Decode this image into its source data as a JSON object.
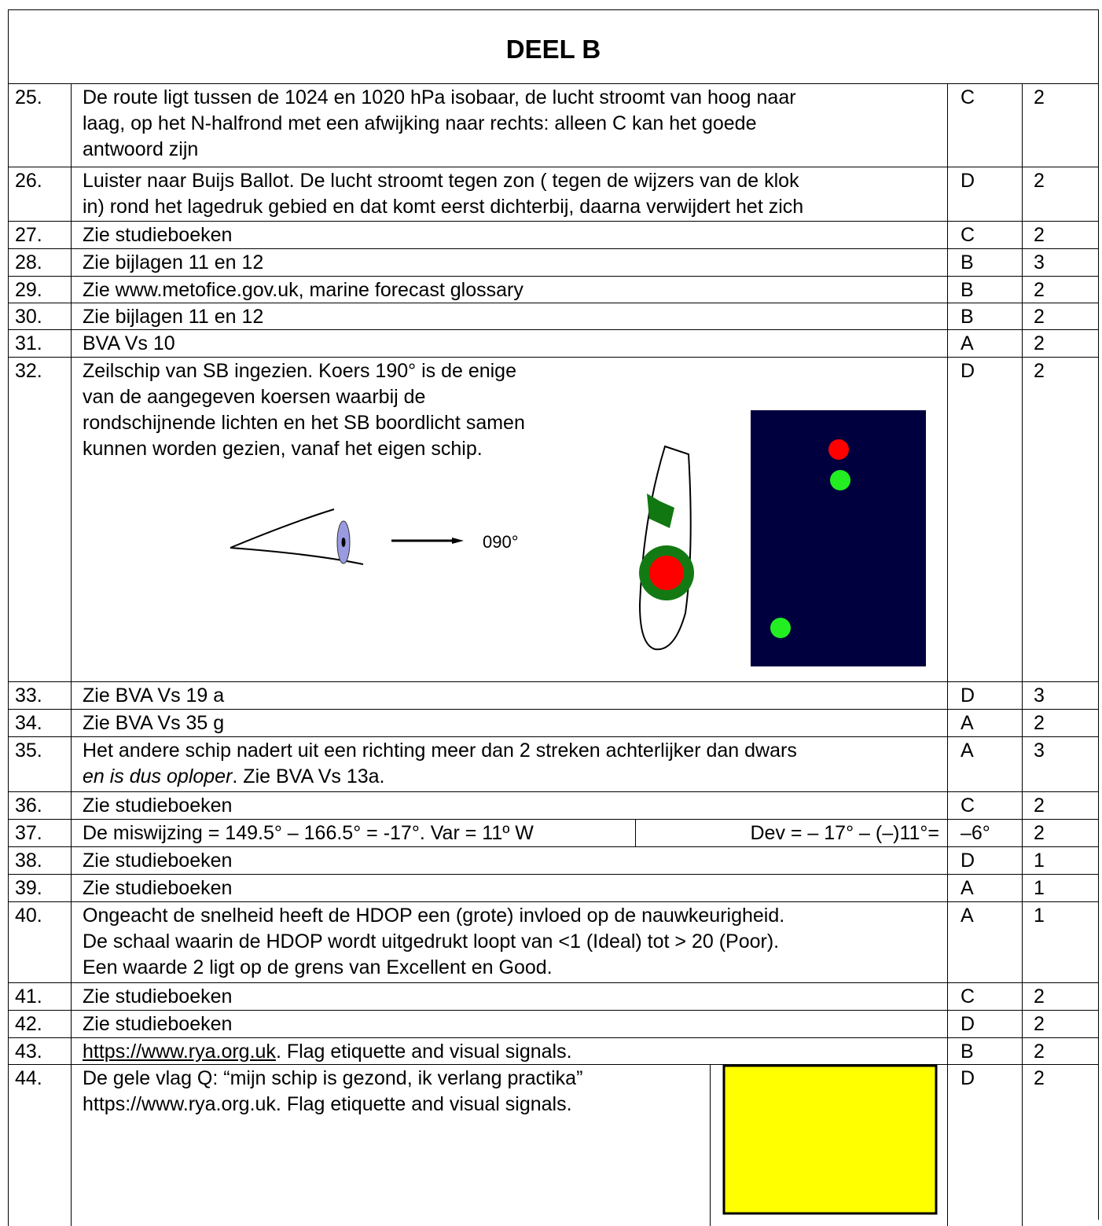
{
  "header": {
    "title": "DEEL B"
  },
  "table": {
    "rows": [
      {
        "number": "25.",
        "lines": [
          "De route ligt tussen de 1024 en 1020 hPa isobaar, de lucht stroomt van hoog naar",
          "laag, op het N-halfrond met een afwijking naar rechts: alleen C kan het goede",
          "antwoord zijn"
        ],
        "answer": "C",
        "points": "2"
      },
      {
        "number": "26.",
        "lines": [
          "Luister naar Buijs Ballot. De lucht stroomt tegen zon ( tegen de wijzers van de klok",
          "in) rond het lagedruk gebied en dat komt eerst dichterbij, daarna verwijdert het zich"
        ],
        "answer": "D",
        "points": "2"
      },
      {
        "number": "27.",
        "lines": [
          "Zie studieboeken"
        ],
        "answer": "C",
        "points": "2"
      },
      {
        "number": "28.",
        "lines": [
          "Zie bijlagen 11 en 12"
        ],
        "answer": "B",
        "points": "3"
      },
      {
        "number": "29.",
        "lines": [
          "Zie www.metofice.gov.uk, marine forecast glossary"
        ],
        "answer": "B",
        "points": "2"
      },
      {
        "number": "30.",
        "lines": [
          "Zie bijlagen 11 en 12"
        ],
        "answer": "B",
        "points": "2"
      },
      {
        "number": "31.",
        "lines": [
          "BVA Vs 10"
        ],
        "answer": "A",
        "points": "2"
      },
      {
        "number": "32.",
        "lines": [
          "Zeilschip van SB ingezien. Koers 190° is de enige",
          "van de aangegeven koersen waarbij de",
          "rondschijnende lichten en het SB boordlicht samen",
          "kunnen worden gezien, vanaf het eigen schip."
        ],
        "figure_label": "090°",
        "answer": "D",
        "points": "2"
      },
      {
        "number": "33.",
        "lines": [
          "Zie BVA Vs 19 a"
        ],
        "answer": "D",
        "points": "3"
      },
      {
        "number": "34.",
        "lines": [
          "Zie BVA Vs 35 g"
        ],
        "answer": "A",
        "points": "2"
      },
      {
        "number": "35.",
        "lines": [
          "Het andere schip nadert uit een richting meer dan 2 streken achterlijker dan dwars"
        ],
        "italic": "en is dus oploper",
        "after": ". Zie BVA Vs 13a.",
        "answer": "A",
        "points": "3"
      },
      {
        "number": "36.",
        "lines": [
          "Zie studieboeken"
        ],
        "answer": "C",
        "points": "2"
      },
      {
        "number": "37.",
        "lines": [
          "De miswijzing = 149.5° – 166.5° = -17°. Var = 11º W"
        ],
        "extra": "Dev = – 17° – (–)11°=",
        "answer": "–6°",
        "points": "2"
      },
      {
        "number": "38.",
        "lines": [
          "Zie studieboeken"
        ],
        "answer": "D",
        "points": "1"
      },
      {
        "number": "39.",
        "lines": [
          "Zie studieboeken"
        ],
        "answer": "A",
        "points": "1"
      },
      {
        "number": "40.",
        "lines": [
          "Ongeacht de snelheid heeft de HDOP een (grote) invloed op de nauwkeurigheid.",
          "De schaal waarin de HDOP wordt uitgedrukt loopt van <1 (Ideal) tot > 20 (Poor).",
          "Een waarde 2 ligt op de grens van Excellent en Good."
        ],
        "answer": "A",
        "points": "1"
      },
      {
        "number": "41.",
        "lines": [
          "Zie studieboeken"
        ],
        "answer": "C",
        "points": "2"
      },
      {
        "number": "42.",
        "lines": [
          "Zie studieboeken"
        ],
        "answer": "D",
        "points": "2"
      },
      {
        "number": "43.",
        "lines": [],
        "link": "https://www.rya.org.uk",
        "after": ". Flag etiquette and visual signals.",
        "answer": "B",
        "points": "2"
      },
      {
        "number": "44.",
        "lines": [
          "De gele vlag Q:  “mijn schip is gezond, ik verlang practika”",
          "https://www.rya.org.uk. Flag etiquette and visual signals."
        ],
        "answer": "D",
        "points": "2"
      }
    ]
  }
}
